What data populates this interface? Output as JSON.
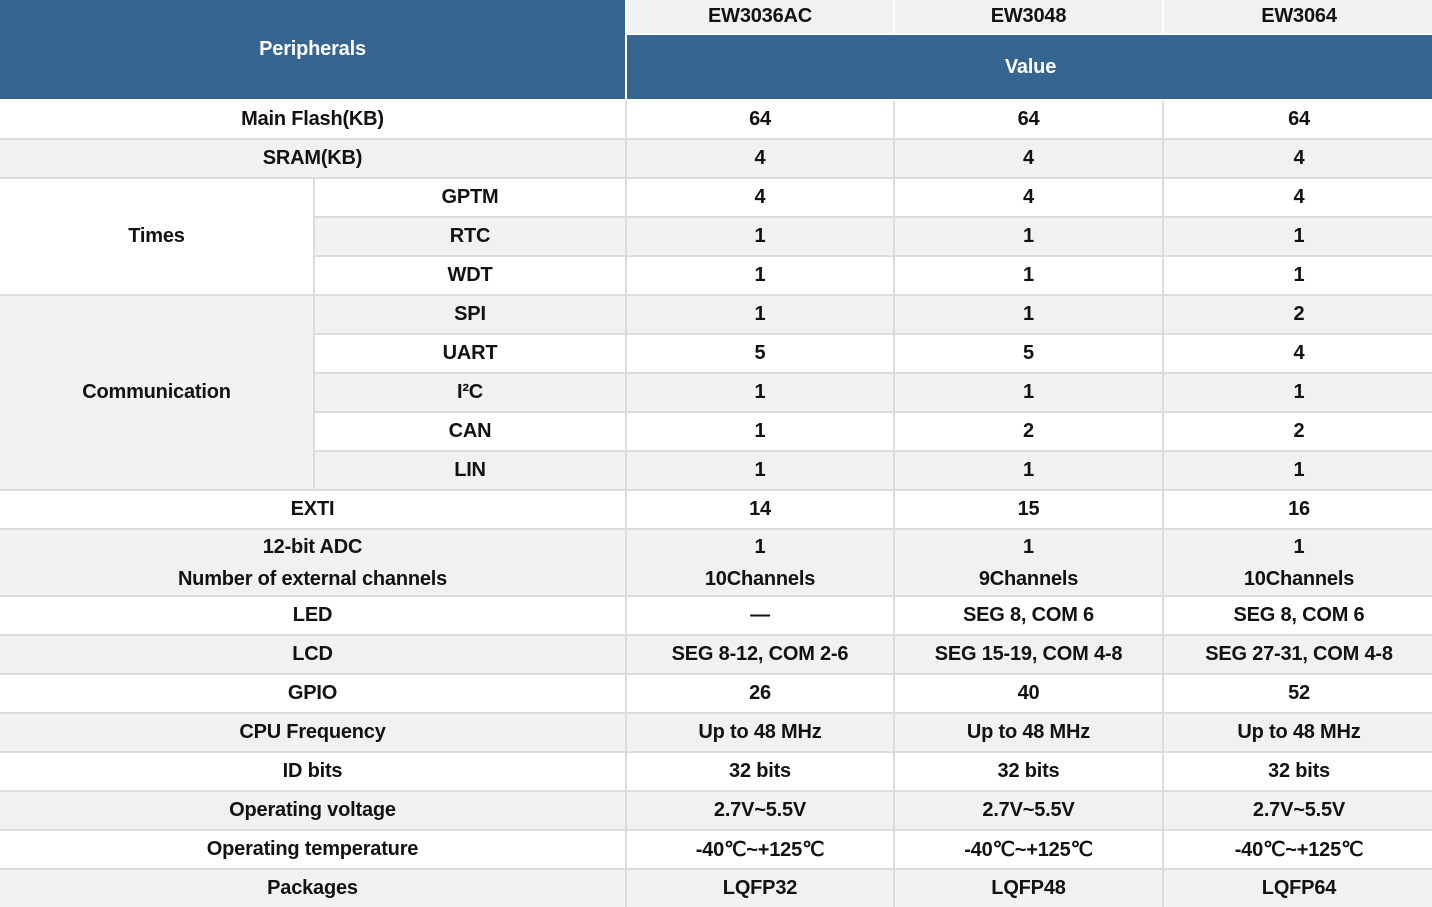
{
  "header": {
    "peripherals": "Peripherals",
    "models": [
      "EW3036AC",
      "EW3048",
      "EW3064"
    ],
    "value": "Value"
  },
  "top_rows": [
    {
      "label": "Main Flash(KB)",
      "values": [
        "64",
        "64",
        "64"
      ]
    },
    {
      "label": "SRAM(KB)",
      "values": [
        "4",
        "4",
        "4"
      ]
    }
  ],
  "groups": [
    {
      "label": "Times",
      "rows": [
        {
          "label": "GPTM",
          "values": [
            "4",
            "4",
            "4"
          ]
        },
        {
          "label": "RTC",
          "values": [
            "1",
            "1",
            "1"
          ]
        },
        {
          "label": "WDT",
          "values": [
            "1",
            "1",
            "1"
          ]
        }
      ]
    },
    {
      "label": "Communication",
      "rows": [
        {
          "label": "SPI",
          "values": [
            "1",
            "1",
            "2"
          ]
        },
        {
          "label": "UART",
          "values": [
            "5",
            "5",
            "4"
          ]
        },
        {
          "label": "I²C",
          "values": [
            "1",
            "1",
            "1"
          ]
        },
        {
          "label": "CAN",
          "values": [
            "1",
            "2",
            "2"
          ]
        },
        {
          "label": "LIN",
          "values": [
            "1",
            "1",
            "1"
          ]
        }
      ]
    }
  ],
  "exti_row": {
    "label": "EXTI",
    "values": [
      "14",
      "15",
      "16"
    ]
  },
  "adc_row": {
    "label_line1": "12-bit ADC",
    "label_line2": "Number of external channels",
    "values": [
      {
        "line1": "1",
        "line2": "10Channels"
      },
      {
        "line1": "1",
        "line2": "9Channels"
      },
      {
        "line1": "1",
        "line2": "10Channels"
      }
    ]
  },
  "bottom_rows": [
    {
      "label": "LED",
      "values": [
        "—",
        "SEG 8, COM 6",
        "SEG 8, COM 6"
      ]
    },
    {
      "label": "LCD",
      "values": [
        "SEG 8-12, COM 2-6",
        "SEG 15-19, COM 4-8",
        "SEG 27-31, COM 4-8"
      ]
    },
    {
      "label": "GPIO",
      "values": [
        "26",
        "40",
        "52"
      ]
    },
    {
      "label": "CPU Frequency",
      "values": [
        "Up to 48 MHz",
        "Up to 48 MHz",
        "Up to 48 MHz"
      ]
    },
    {
      "label": "ID bits",
      "values": [
        "32 bits",
        "32 bits",
        "32 bits"
      ]
    },
    {
      "label": "Operating voltage",
      "values": [
        "2.7V~5.5V",
        "2.7V~5.5V",
        "2.7V~5.5V"
      ]
    },
    {
      "label": "Operating temperature",
      "values": [
        "-40℃~+125℃",
        "-40℃~+125℃",
        "-40℃~+125℃"
      ]
    },
    {
      "label": "Packages",
      "values": [
        "LQFP32",
        "LQFP48",
        "LQFP64"
      ]
    }
  ],
  "colors": {
    "header_blue": "#366592",
    "header_gray": "#f1f1f1",
    "row_alt": "#f1f1f1",
    "row_white": "#ffffff",
    "border": "#dcdcdc",
    "header_text": "#ffffff",
    "body_text": "#121212"
  }
}
